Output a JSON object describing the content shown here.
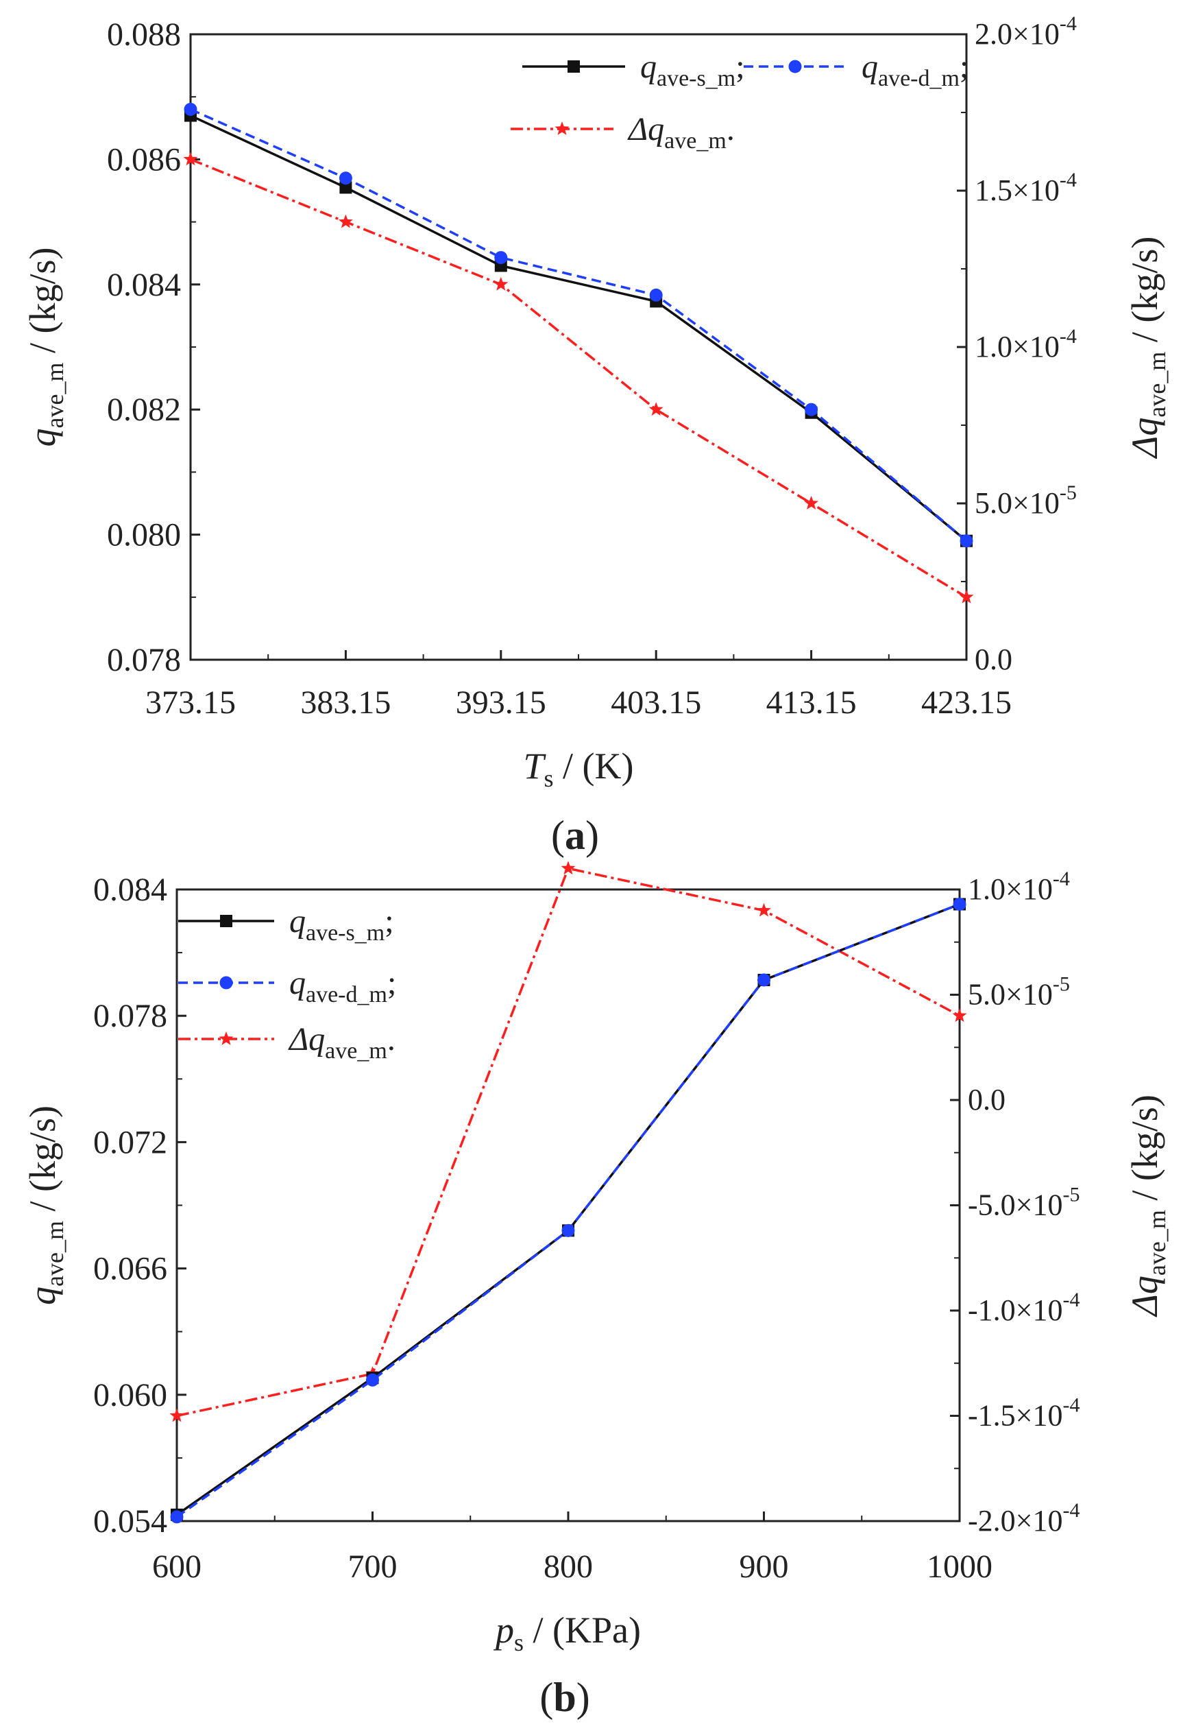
{
  "colors": {
    "solid": "#111111",
    "dashed": "#1f3fff",
    "delta": "#ff1f1f"
  },
  "chart_data": [
    {
      "type": "line",
      "panel_label": "a",
      "x": [
        373.15,
        383.15,
        393.15,
        403.15,
        413.15,
        423.15
      ],
      "x_ticks": [
        "373.15",
        "383.15",
        "393.15",
        "403.15",
        "413.15",
        "423.15"
      ],
      "xlim": [
        373.15,
        423.15
      ],
      "ylim": [
        0.078,
        0.088
      ],
      "y_ticks": [
        "0.078",
        "0.080",
        "0.082",
        "0.084",
        "0.086",
        "0.088"
      ],
      "y2lim": [
        0.0,
        0.0002
      ],
      "y2_ticks": [
        {
          "mant": "0.0",
          "exp": ""
        },
        {
          "mant": "5.0×10",
          "exp": "-5"
        },
        {
          "mant": "1.0×10",
          "exp": "-4"
        },
        {
          "mant": "1.5×10",
          "exp": "-4"
        },
        {
          "mant": "2.0×10",
          "exp": "-4"
        }
      ],
      "xlabel": {
        "sym": "T",
        "sub": "s",
        "unit": " / (K)"
      },
      "ylabel": {
        "sym": "q",
        "sub": "ave_m",
        "unit": " / (kg/s)"
      },
      "y2label": {
        "pre": "Δ",
        "sym": "q",
        "sub": "ave_m",
        "unit": " / (kg/s)"
      },
      "series": [
        {
          "name": "q_ave-s_m",
          "sub": "ave-s_m",
          "pre": "",
          "suffix": ";",
          "axis": "left",
          "marker": "square",
          "dash": "",
          "color": "solid",
          "values": [
            0.0867,
            0.08555,
            0.0843,
            0.08373,
            0.08195,
            0.0799
          ]
        },
        {
          "name": "q_ave-d_m",
          "sub": "ave-d_m",
          "pre": "",
          "suffix": ";",
          "axis": "left",
          "marker": "circle",
          "dash": "14,8",
          "color": "dashed",
          "values": [
            0.0868,
            0.0857,
            0.08443,
            0.08383,
            0.082,
            0.0799
          ]
        },
        {
          "name": "Δq_ave_m",
          "sub": "ave_m",
          "pre": "Δ",
          "suffix": ".",
          "axis": "right",
          "marker": "star",
          "dash": "18,6,4,6",
          "color": "delta",
          "values": [
            0.00016,
            0.00014,
            0.00012,
            8e-05,
            5e-05,
            2e-05
          ]
        }
      ]
    },
    {
      "type": "line",
      "panel_label": "b",
      "x": [
        600,
        700,
        800,
        900,
        1000
      ],
      "x_ticks": [
        "600",
        "700",
        "800",
        "900",
        "1000"
      ],
      "xlim": [
        600,
        1000
      ],
      "ylim": [
        0.054,
        0.084
      ],
      "y_ticks": [
        "0.054",
        "0.060",
        "0.066",
        "0.072",
        "0.078",
        "0.084"
      ],
      "y2lim": [
        -0.0002,
        0.0001
      ],
      "y2_ticks": [
        {
          "mant": "-2.0×10",
          "exp": "-4"
        },
        {
          "mant": "-1.5×10",
          "exp": "-4"
        },
        {
          "mant": "-1.0×10",
          "exp": "-4"
        },
        {
          "mant": "-5.0×10",
          "exp": "-5"
        },
        {
          "mant": "0.0",
          "exp": ""
        },
        {
          "mant": "5.0×10",
          "exp": "-5"
        },
        {
          "mant": "1.0×10",
          "exp": "-4"
        }
      ],
      "xlabel": {
        "sym": "p",
        "sub": "s",
        "unit": " / (KPa)"
      },
      "ylabel": {
        "sym": "q",
        "sub": "ave_m",
        "unit": " / (kg/s)"
      },
      "y2label": {
        "pre": "Δ",
        "sym": "q",
        "sub": "ave_m",
        "unit": " / (kg/s)"
      },
      "series": [
        {
          "name": "q_ave-s_m",
          "sub": "ave-s_m",
          "pre": "",
          "suffix": ";",
          "axis": "left",
          "marker": "square",
          "dash": "",
          "color": "solid",
          "values": [
            0.0543,
            0.0608,
            0.0678,
            0.0797,
            0.0833
          ]
        },
        {
          "name": "q_ave-d_m",
          "sub": "ave-d_m",
          "pre": "",
          "suffix": ";",
          "axis": "left",
          "marker": "circle",
          "dash": "14,8",
          "color": "dashed",
          "values": [
            0.0542,
            0.0607,
            0.0678,
            0.0797,
            0.0833
          ]
        },
        {
          "name": "Δq_ave_m",
          "sub": "ave_m",
          "pre": "Δ",
          "suffix": ".",
          "axis": "right",
          "marker": "star",
          "dash": "18,6,4,6",
          "color": "delta",
          "values": [
            -0.00015,
            -0.00013,
            0.00011,
            9e-05,
            4e-05
          ]
        }
      ]
    }
  ]
}
